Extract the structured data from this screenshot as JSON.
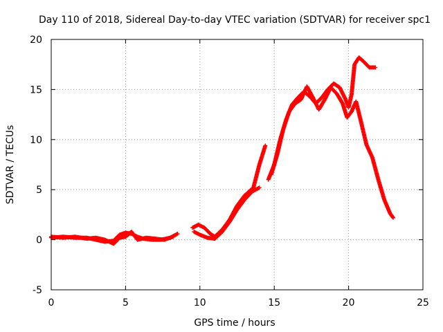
{
  "chart_data": {
    "type": "scatter",
    "title": "Day 110 of 2018, Sidereal Day-to-day VTEC variation (SDTVAR) for receiver spc1",
    "xlabel": "GPS time / hours",
    "ylabel": "SDTVAR / TECUs",
    "xlim": [
      0,
      25
    ],
    "ylim": [
      -5,
      20
    ],
    "xticks": [
      0,
      5,
      10,
      15,
      20,
      25
    ],
    "yticks": [
      -5,
      0,
      5,
      10,
      15,
      20
    ],
    "grid": true,
    "legend": "none",
    "marker": "+",
    "series": [
      {
        "name": "spc1-sdtvar-a",
        "color": "#ff0000",
        "segments": [
          [
            [
              0.0,
              0.2
            ],
            [
              0.8,
              0.3
            ],
            [
              1.6,
              0.2
            ],
            [
              2.4,
              0.2
            ],
            [
              3.0,
              0.0
            ],
            [
              3.6,
              -0.2
            ],
            [
              4.2,
              -0.1
            ],
            [
              4.6,
              0.5
            ],
            [
              5.0,
              0.7
            ],
            [
              5.4,
              0.6
            ],
            [
              5.8,
              0.3
            ],
            [
              6.2,
              0.1
            ],
            [
              6.8,
              0.0
            ],
            [
              7.4,
              0.0
            ],
            [
              8.0,
              0.2
            ],
            [
              8.5,
              0.6
            ]
          ],
          [
            [
              9.5,
              1.2
            ],
            [
              9.9,
              1.5
            ],
            [
              10.3,
              1.2
            ],
            [
              10.7,
              0.6
            ],
            [
              11.0,
              0.3
            ],
            [
              11.5,
              1.0
            ],
            [
              12.0,
              2.0
            ],
            [
              12.5,
              3.4
            ],
            [
              13.0,
              4.4
            ],
            [
              13.6,
              5.2
            ],
            [
              14.0,
              7.5
            ],
            [
              14.4,
              9.4
            ]
          ],
          [
            [
              14.6,
              6.0
            ],
            [
              15.0,
              7.5
            ],
            [
              15.4,
              10.0
            ],
            [
              15.8,
              12.0
            ],
            [
              16.2,
              13.5
            ],
            [
              16.6,
              14.2
            ],
            [
              17.0,
              14.8
            ],
            [
              17.4,
              14.3
            ],
            [
              17.8,
              13.6
            ],
            [
              18.2,
              14.2
            ],
            [
              18.6,
              15.0
            ],
            [
              19.0,
              15.6
            ],
            [
              19.4,
              15.2
            ],
            [
              19.8,
              14.0
            ],
            [
              20.0,
              13.2
            ],
            [
              20.2,
              14.5
            ],
            [
              20.4,
              17.5
            ],
            [
              20.7,
              18.2
            ],
            [
              21.0,
              17.8
            ],
            [
              21.4,
              17.2
            ],
            [
              21.8,
              17.2
            ]
          ]
        ]
      },
      {
        "name": "spc1-sdtvar-b",
        "color": "#ff0000",
        "segments": [
          [
            [
              0.0,
              0.3
            ],
            [
              0.8,
              0.2
            ],
            [
              1.6,
              0.3
            ],
            [
              2.4,
              0.1
            ],
            [
              3.0,
              0.2
            ],
            [
              3.6,
              0.0
            ],
            [
              4.2,
              -0.4
            ],
            [
              4.6,
              0.2
            ],
            [
              5.0,
              0.3
            ],
            [
              5.4,
              0.8
            ],
            [
              5.8,
              0.0
            ],
            [
              6.4,
              0.2
            ],
            [
              7.0,
              0.1
            ],
            [
              7.6,
              0.0
            ],
            [
              8.2,
              0.3
            ]
          ],
          [
            [
              9.6,
              0.8
            ],
            [
              10.0,
              0.5
            ],
            [
              10.5,
              0.2
            ],
            [
              11.0,
              0.1
            ],
            [
              11.5,
              0.8
            ],
            [
              12.0,
              1.8
            ],
            [
              12.5,
              3.0
            ],
            [
              13.0,
              4.0
            ],
            [
              13.5,
              4.8
            ],
            [
              14.0,
              5.2
            ]
          ],
          [
            [
              14.8,
              6.5
            ],
            [
              15.2,
              8.5
            ],
            [
              15.6,
              11.0
            ],
            [
              16.0,
              12.8
            ],
            [
              16.4,
              13.6
            ],
            [
              16.8,
              14.0
            ],
            [
              17.2,
              15.3
            ],
            [
              17.6,
              14.2
            ],
            [
              18.0,
              13.0
            ],
            [
              18.4,
              14.0
            ],
            [
              18.8,
              15.2
            ],
            [
              19.2,
              14.6
            ],
            [
              19.6,
              13.6
            ],
            [
              19.9,
              12.2
            ],
            [
              20.2,
              12.8
            ],
            [
              20.5,
              13.8
            ],
            [
              20.8,
              12.0
            ],
            [
              21.2,
              9.5
            ],
            [
              21.6,
              8.2
            ],
            [
              22.0,
              6.0
            ],
            [
              22.4,
              4.0
            ],
            [
              22.8,
              2.6
            ],
            [
              23.0,
              2.2
            ]
          ]
        ]
      }
    ]
  }
}
